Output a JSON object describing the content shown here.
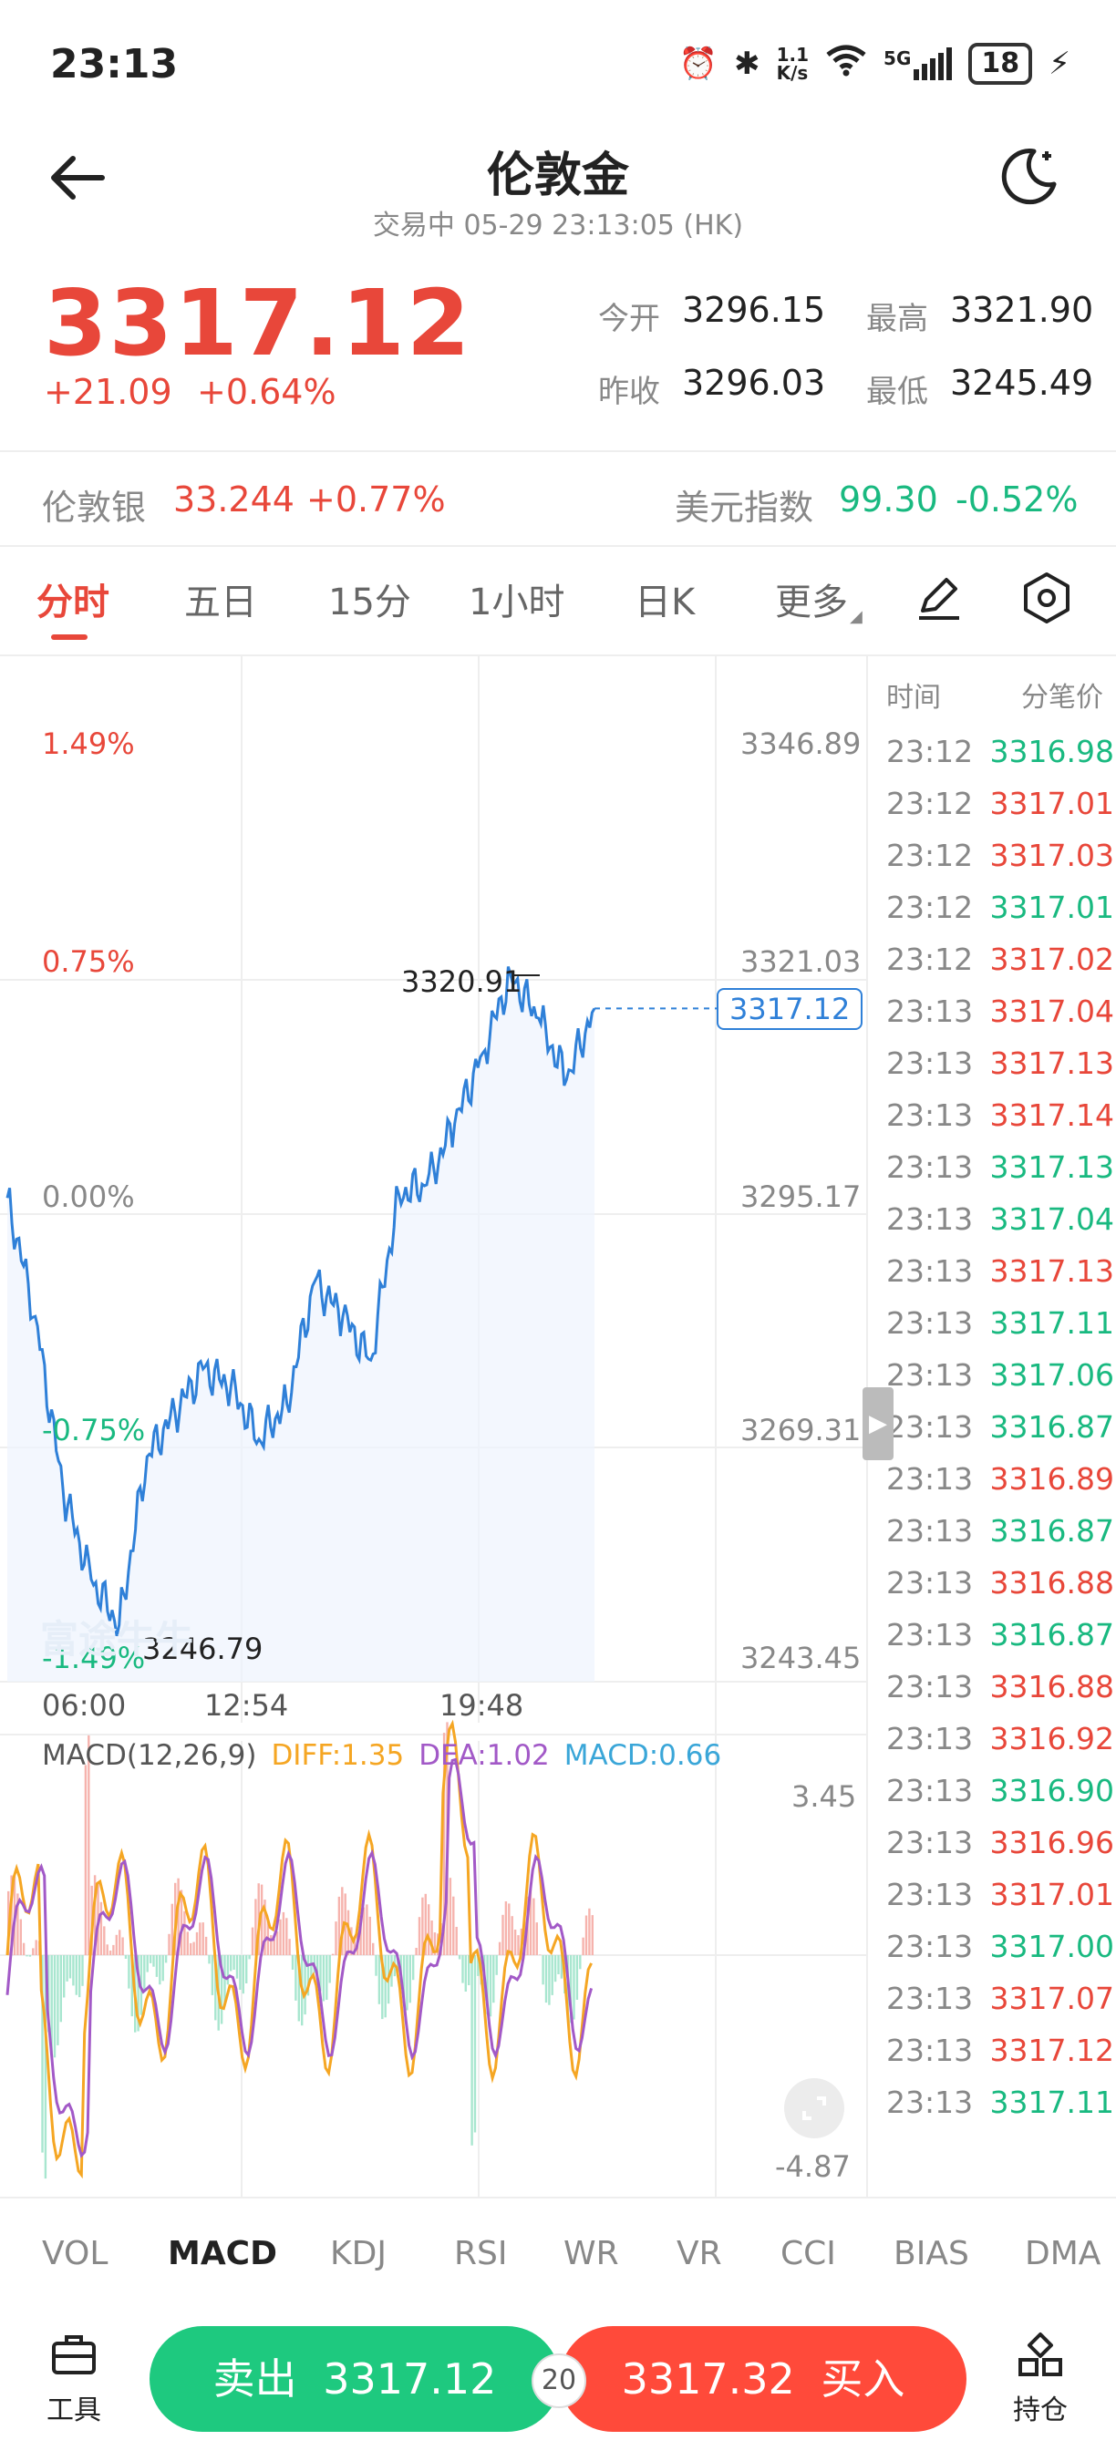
{
  "status": {
    "time": "23:13",
    "net_speed_top": "1.1",
    "net_speed_bottom": "K/s",
    "signal": "5G",
    "battery": "18"
  },
  "header": {
    "title": "伦敦金",
    "subtitle": "交易中  05-29 23:13:05 (HK)"
  },
  "quote": {
    "price": "3317.12",
    "change": "+21.09",
    "change_pct": "+0.64%",
    "open_label": "今开",
    "open": "3296.15",
    "high_label": "最高",
    "high": "3321.90",
    "prev_label": "昨收",
    "prev": "3296.03",
    "low_label": "最低",
    "low": "3245.49"
  },
  "related": [
    {
      "name": "伦敦银",
      "value": "33.244",
      "pct": "+0.77%"
    },
    {
      "name": "美元指数",
      "value": "99.30",
      "pct": "-0.52%"
    }
  ],
  "tabs": [
    "分时",
    "五日",
    "15分",
    "1小时",
    "日K",
    "更多"
  ],
  "chart": {
    "left_labels": [
      "1.49%",
      "0.75%",
      "0.00%",
      "-0.75%",
      "-1.49%"
    ],
    "right_labels": [
      "3346.89",
      "3321.03",
      "3295.17",
      "3269.31",
      "3243.45"
    ],
    "x_labels": [
      "06:00",
      "12:54",
      "19:48"
    ],
    "high_mark": "3320.91",
    "low_mark": "3246.79",
    "current": "3317.12",
    "watermark": "富途牛牛"
  },
  "chart_data": {
    "type": "line",
    "ylim": [
      3243.45,
      3346.89
    ],
    "x": [
      "06:00",
      "07:00",
      "08:00",
      "09:00",
      "10:00",
      "11:00",
      "12:00",
      "12:54",
      "14:00",
      "15:00",
      "16:00",
      "17:00",
      "18:00",
      "19:00",
      "19:48",
      "20:30",
      "21:00",
      "21:30",
      "22:00",
      "22:30",
      "23:00",
      "23:13"
    ],
    "series": [
      {
        "values": [
          3295.5,
          3282.0,
          3262.0,
          3252.0,
          3246.8,
          3266.0,
          3271.0,
          3276.0,
          3274.0,
          3268.0,
          3272.0,
          3286.0,
          3282.0,
          3277.0,
          3296.0,
          3297.0,
          3304.0,
          3312.0,
          3320.9,
          3316.0,
          3309.0,
          3317.12
        ]
      }
    ]
  },
  "macd": {
    "title": "MACD(12,26,9)",
    "diff": "DIFF:1.35",
    "dea": "DEA:1.02",
    "macd": "MACD:0.66",
    "top": "3.45",
    "bottom": "-4.87",
    "colors": {
      "diff": "#f5a623",
      "dea": "#a259c7",
      "macd": "#3aa6d8"
    }
  },
  "ticks": {
    "head_time": "时间",
    "head_price": "分笔价",
    "rows": [
      {
        "t": "23:12",
        "p": "3316.98",
        "c": "green"
      },
      {
        "t": "23:12",
        "p": "3317.01",
        "c": "red"
      },
      {
        "t": "23:12",
        "p": "3317.03",
        "c": "red"
      },
      {
        "t": "23:12",
        "p": "3317.01",
        "c": "green"
      },
      {
        "t": "23:12",
        "p": "3317.02",
        "c": "red"
      },
      {
        "t": "23:13",
        "p": "3317.04",
        "c": "red"
      },
      {
        "t": "23:13",
        "p": "3317.13",
        "c": "red"
      },
      {
        "t": "23:13",
        "p": "3317.14",
        "c": "red"
      },
      {
        "t": "23:13",
        "p": "3317.13",
        "c": "green"
      },
      {
        "t": "23:13",
        "p": "3317.04",
        "c": "green"
      },
      {
        "t": "23:13",
        "p": "3317.13",
        "c": "red"
      },
      {
        "t": "23:13",
        "p": "3317.11",
        "c": "green"
      },
      {
        "t": "23:13",
        "p": "3317.06",
        "c": "green"
      },
      {
        "t": "23:13",
        "p": "3316.87",
        "c": "green"
      },
      {
        "t": "23:13",
        "p": "3316.89",
        "c": "red"
      },
      {
        "t": "23:13",
        "p": "3316.87",
        "c": "green"
      },
      {
        "t": "23:13",
        "p": "3316.88",
        "c": "red"
      },
      {
        "t": "23:13",
        "p": "3316.87",
        "c": "green"
      },
      {
        "t": "23:13",
        "p": "3316.88",
        "c": "red"
      },
      {
        "t": "23:13",
        "p": "3316.92",
        "c": "red"
      },
      {
        "t": "23:13",
        "p": "3316.90",
        "c": "green"
      },
      {
        "t": "23:13",
        "p": "3316.96",
        "c": "red"
      },
      {
        "t": "23:13",
        "p": "3317.01",
        "c": "red"
      },
      {
        "t": "23:13",
        "p": "3317.00",
        "c": "green"
      },
      {
        "t": "23:13",
        "p": "3317.07",
        "c": "red"
      },
      {
        "t": "23:13",
        "p": "3317.12",
        "c": "red"
      },
      {
        "t": "23:13",
        "p": "3317.11",
        "c": "green"
      }
    ]
  },
  "indicators": [
    "VOL",
    "MACD",
    "KDJ",
    "RSI",
    "WR",
    "VR",
    "CCI",
    "BIAS",
    "DMA"
  ],
  "bottom": {
    "tools_label": "工具",
    "sell_label": "卖出",
    "sell_price": "3317.12",
    "spread": "20",
    "buy_price": "3317.32",
    "buy_label": "买入",
    "positions_label": "持仓"
  },
  "colors": {
    "red": "#e8473a",
    "green": "#19b980",
    "line": "#2f80d8",
    "buy": "#ff4a3a",
    "sell": "#1ec97f"
  }
}
